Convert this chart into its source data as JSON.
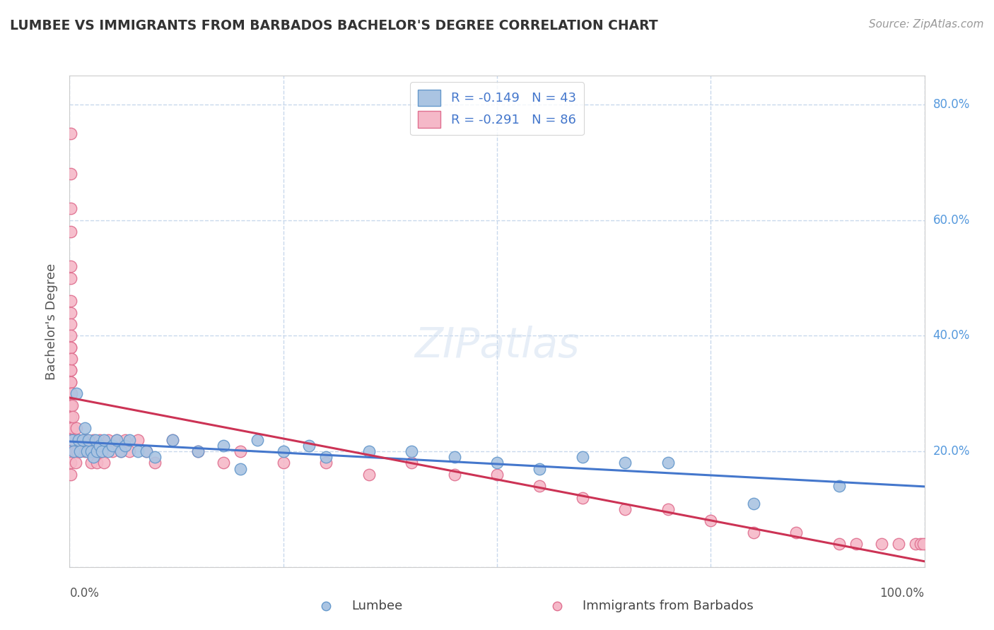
{
  "title": "LUMBEE VS IMMIGRANTS FROM BARBADOS BACHELOR'S DEGREE CORRELATION CHART",
  "source": "Source: ZipAtlas.com",
  "ylabel": "Bachelor's Degree",
  "xlim": [
    0.0,
    1.0
  ],
  "ylim": [
    0.0,
    0.85
  ],
  "legend_r1": "R = -0.149   N = 43",
  "legend_r2": "R = -0.291   N = 86",
  "lumbee_color": "#aac4e2",
  "lumbee_edge": "#6699cc",
  "barbados_color": "#f5b8c8",
  "barbados_edge": "#e07090",
  "lumbee_line_color": "#4477cc",
  "barbados_line_color": "#cc3355",
  "background_color": "#ffffff",
  "grid_color": "#c8d8ec",
  "lumbee_x": [
    0.003,
    0.005,
    0.008,
    0.01,
    0.012,
    0.015,
    0.018,
    0.02,
    0.022,
    0.025,
    0.028,
    0.03,
    0.032,
    0.035,
    0.038,
    0.04,
    0.045,
    0.05,
    0.055,
    0.06,
    0.065,
    0.07,
    0.08,
    0.09,
    0.1,
    0.12,
    0.15,
    0.18,
    0.2,
    0.22,
    0.25,
    0.28,
    0.3,
    0.35,
    0.4,
    0.45,
    0.5,
    0.55,
    0.6,
    0.65,
    0.7,
    0.8,
    0.9
  ],
  "lumbee_y": [
    0.22,
    0.2,
    0.3,
    0.22,
    0.2,
    0.22,
    0.24,
    0.2,
    0.22,
    0.2,
    0.19,
    0.22,
    0.2,
    0.21,
    0.2,
    0.22,
    0.2,
    0.21,
    0.22,
    0.2,
    0.21,
    0.22,
    0.2,
    0.2,
    0.19,
    0.22,
    0.2,
    0.21,
    0.17,
    0.22,
    0.2,
    0.21,
    0.19,
    0.2,
    0.2,
    0.19,
    0.18,
    0.17,
    0.19,
    0.18,
    0.18,
    0.11,
    0.14
  ],
  "barbados_x": [
    0.001,
    0.001,
    0.001,
    0.001,
    0.001,
    0.001,
    0.001,
    0.001,
    0.001,
    0.001,
    0.001,
    0.001,
    0.001,
    0.001,
    0.001,
    0.001,
    0.001,
    0.001,
    0.001,
    0.001,
    0.001,
    0.001,
    0.001,
    0.001,
    0.001,
    0.001,
    0.001,
    0.001,
    0.001,
    0.001,
    0.002,
    0.002,
    0.003,
    0.003,
    0.004,
    0.005,
    0.006,
    0.007,
    0.008,
    0.009,
    0.01,
    0.012,
    0.015,
    0.018,
    0.02,
    0.022,
    0.025,
    0.028,
    0.03,
    0.032,
    0.035,
    0.038,
    0.04,
    0.045,
    0.05,
    0.055,
    0.06,
    0.065,
    0.07,
    0.08,
    0.09,
    0.1,
    0.12,
    0.15,
    0.18,
    0.2,
    0.25,
    0.3,
    0.35,
    0.4,
    0.45,
    0.5,
    0.55,
    0.6,
    0.65,
    0.7,
    0.75,
    0.8,
    0.85,
    0.9,
    0.92,
    0.95,
    0.97,
    0.99,
    0.995,
    0.999
  ],
  "barbados_y": [
    0.75,
    0.68,
    0.62,
    0.58,
    0.52,
    0.5,
    0.46,
    0.44,
    0.42,
    0.4,
    0.38,
    0.36,
    0.34,
    0.32,
    0.3,
    0.28,
    0.26,
    0.24,
    0.22,
    0.38,
    0.36,
    0.34,
    0.32,
    0.3,
    0.28,
    0.24,
    0.22,
    0.2,
    0.18,
    0.16,
    0.36,
    0.3,
    0.28,
    0.24,
    0.26,
    0.22,
    0.2,
    0.18,
    0.24,
    0.2,
    0.22,
    0.2,
    0.22,
    0.2,
    0.22,
    0.2,
    0.18,
    0.22,
    0.2,
    0.18,
    0.22,
    0.2,
    0.18,
    0.22,
    0.2,
    0.22,
    0.2,
    0.22,
    0.2,
    0.22,
    0.2,
    0.18,
    0.22,
    0.2,
    0.18,
    0.2,
    0.18,
    0.18,
    0.16,
    0.18,
    0.16,
    0.16,
    0.14,
    0.12,
    0.1,
    0.1,
    0.08,
    0.06,
    0.06,
    0.04,
    0.04,
    0.04,
    0.04,
    0.04,
    0.04,
    0.04
  ]
}
